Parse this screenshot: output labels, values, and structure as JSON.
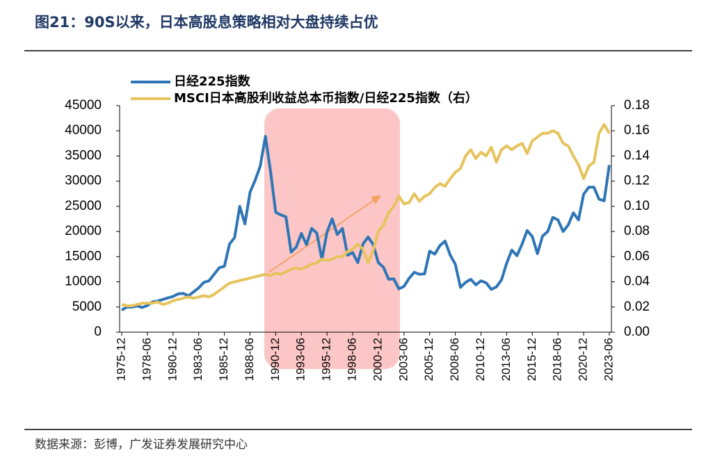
{
  "chart_data": {
    "type": "line",
    "title": "图21：90S以来，日本高股息策略相对大盘持续占优",
    "source": "数据来源：彭博，广发证券发展研究中心",
    "categories": [
      "1975-12",
      null,
      null,
      null,
      null,
      "1978-06",
      null,
      null,
      null,
      null,
      "1980-12",
      null,
      null,
      null,
      null,
      "1983-06",
      null,
      null,
      null,
      null,
      "1985-12",
      null,
      null,
      null,
      null,
      "1988-06",
      null,
      null,
      null,
      null,
      "1990-12",
      null,
      null,
      null,
      null,
      "1993-06",
      null,
      null,
      null,
      null,
      "1995-12",
      null,
      null,
      null,
      null,
      "1998-06",
      null,
      null,
      null,
      null,
      "2000-12",
      null,
      null,
      null,
      null,
      "2003-06",
      null,
      null,
      null,
      null,
      "2005-12",
      null,
      null,
      null,
      null,
      "2008-06",
      null,
      null,
      null,
      null,
      "2010-12",
      null,
      null,
      null,
      null,
      "2013-06",
      null,
      null,
      null,
      null,
      "2015-12",
      null,
      null,
      null,
      null,
      "2018-06",
      null,
      null,
      null,
      null,
      "2020-12",
      null,
      null,
      null,
      null,
      "2023-06"
    ],
    "series": [
      {
        "name": "日经225指数",
        "color": "#2e75b6",
        "axis": "y",
        "values": [
          4400,
          5000,
          4990,
          5200,
          4900,
          5300,
          6000,
          6200,
          6500,
          6800,
          7100,
          7600,
          7700,
          7200,
          8000,
          8800,
          9900,
          10200,
          11500,
          12800,
          13100,
          17500,
          18800,
          25000,
          21500,
          27800,
          30200,
          33000,
          38900,
          31900,
          23800,
          23300,
          22900,
          15900,
          16900,
          19600,
          17400,
          20600,
          19700,
          14500,
          19900,
          22500,
          19400,
          20600,
          15300,
          15800,
          13800,
          17500,
          18900,
          17400,
          13800,
          12900,
          10500,
          10600,
          8600,
          9100,
          10700,
          11900,
          11500,
          11600,
          16100,
          15500,
          17200,
          18100,
          15300,
          13500,
          8900,
          9900,
          10500,
          9400,
          10200,
          9800,
          8500,
          9000,
          10400,
          13700,
          16300,
          15200,
          17500,
          20200,
          19000,
          15600,
          19100,
          20000,
          22800,
          22300,
          20000,
          21300,
          23700,
          22300,
          27400,
          28800,
          28800,
          26400,
          26100,
          33200
        ]
      },
      {
        "name": "MSCI日本高股利收益总本币指数/日经225指数（右）",
        "color": "#e6c35c",
        "axis": "y2",
        "values": [
          0.022,
          0.021,
          0.021,
          0.022,
          0.023,
          0.023,
          0.023,
          0.024,
          0.022,
          0.023,
          0.025,
          0.026,
          0.027,
          0.028,
          0.027,
          0.028,
          0.029,
          0.028,
          0.03,
          0.033,
          0.036,
          0.039,
          0.04,
          0.041,
          0.042,
          0.043,
          0.044,
          0.045,
          0.046,
          0.045,
          0.047,
          0.046,
          0.048,
          0.05,
          0.051,
          0.05,
          0.052,
          0.054,
          0.055,
          0.058,
          0.057,
          0.058,
          0.06,
          0.06,
          0.064,
          0.066,
          0.07,
          0.066,
          0.055,
          0.065,
          0.08,
          0.085,
          0.095,
          0.1,
          0.108,
          0.102,
          0.103,
          0.11,
          0.104,
          0.108,
          0.11,
          0.115,
          0.118,
          0.116,
          0.122,
          0.127,
          0.13,
          0.14,
          0.145,
          0.138,
          0.143,
          0.14,
          0.147,
          0.135,
          0.145,
          0.148,
          0.145,
          0.148,
          0.15,
          0.142,
          0.152,
          0.155,
          0.158,
          0.158,
          0.16,
          0.158,
          0.15,
          0.148,
          0.14,
          0.133,
          0.122,
          0.132,
          0.135,
          0.158,
          0.165,
          0.158
        ]
      }
    ],
    "ylim": [
      0,
      45000
    ],
    "yticks": [
      0,
      5000,
      10000,
      15000,
      20000,
      25000,
      30000,
      35000,
      40000,
      45000
    ],
    "y2lim": [
      0,
      0.18
    ],
    "y2ticks": [
      {
        "value": 0,
        "label": "0.00"
      },
      {
        "value": 0.02,
        "label": "0.02"
      },
      {
        "value": 0.04,
        "label": "0.04"
      },
      {
        "value": 0.06,
        "label": "0.06"
      },
      {
        "value": 0.08,
        "label": "0.08"
      },
      {
        "value": 0.1,
        "label": "0.10"
      },
      {
        "value": 0.12,
        "label": "0.12"
      },
      {
        "value": 0.14,
        "label": "0.14"
      },
      {
        "value": 0.16,
        "label": "0.16"
      },
      {
        "value": 0.18,
        "label": "0.18"
      }
    ]
  }
}
